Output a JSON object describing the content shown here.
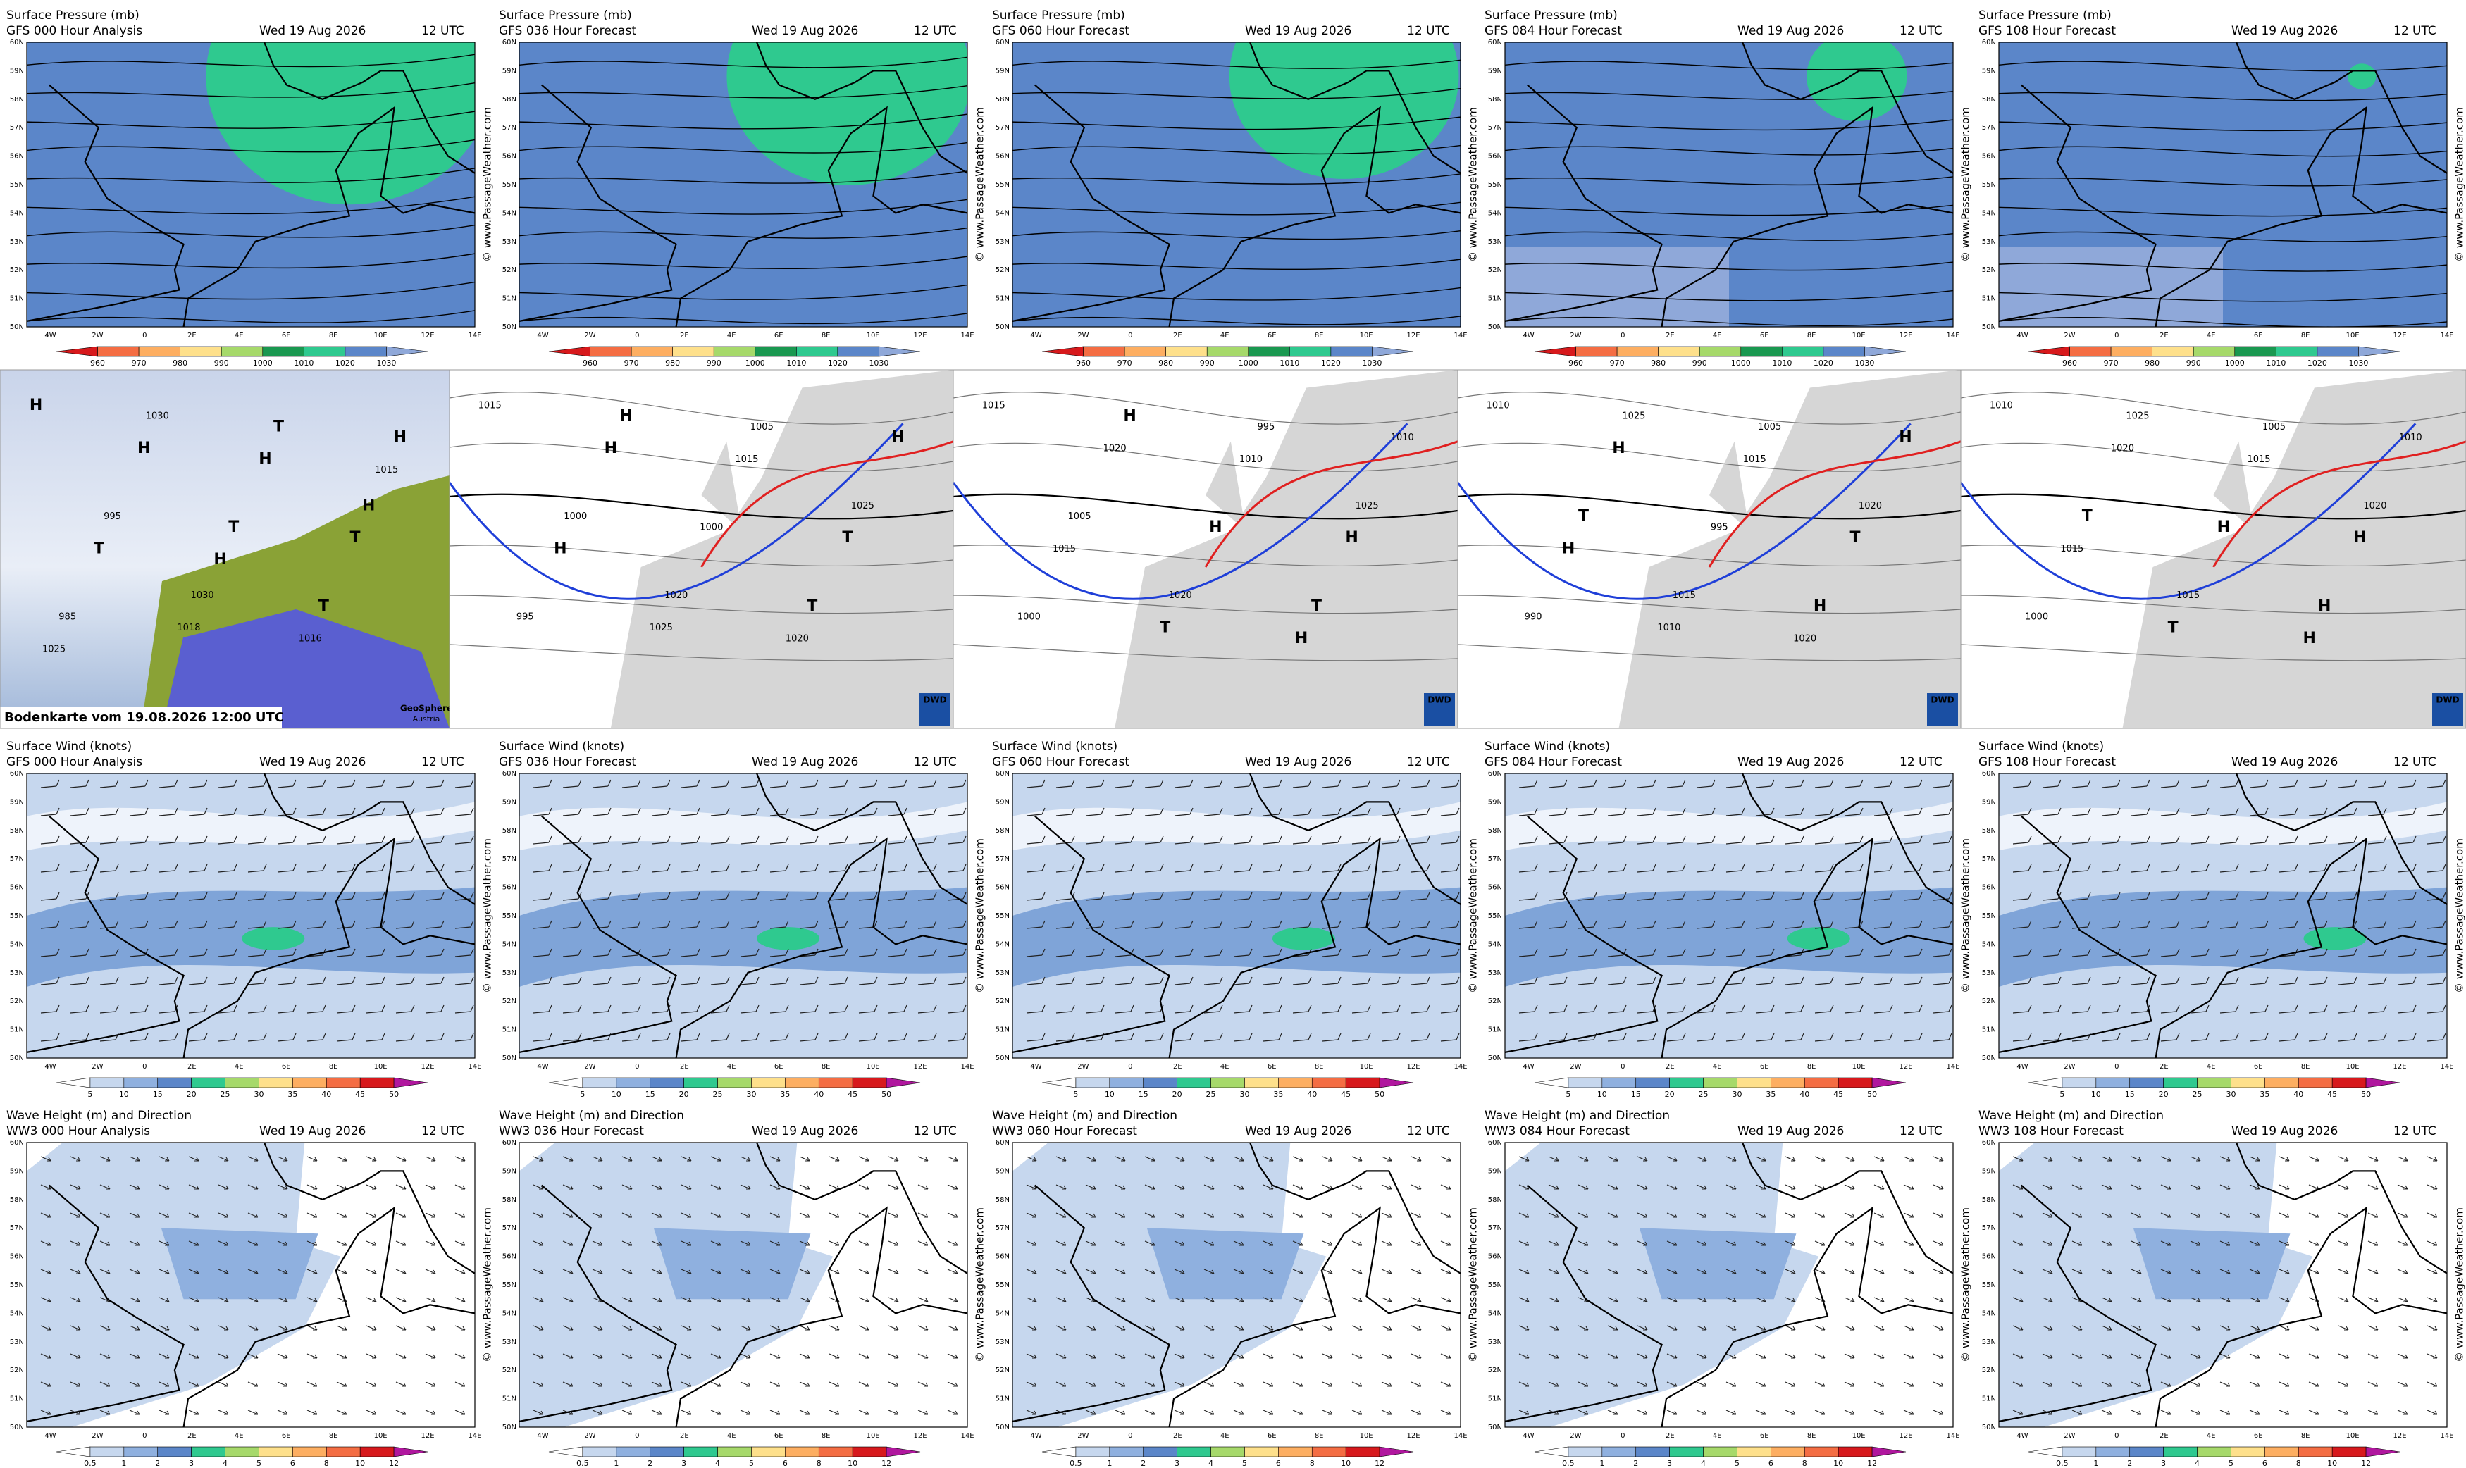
{
  "date": "Wed 19 Aug 2026",
  "time": "12 UTC",
  "watermark": "© www.PassageWeather.com",
  "lat_labels": [
    "50N",
    "51N",
    "52N",
    "53N",
    "54N",
    "55N",
    "56N",
    "57N",
    "58N",
    "59N",
    "60N"
  ],
  "lon_labels": [
    "4W",
    "2W",
    "0",
    "2E",
    "4E",
    "6E",
    "8E",
    "10E",
    "12E",
    "14E"
  ],
  "rows": [
    {
      "title": "Surface Pressure (mb)",
      "panels": [
        "GFS 000 Hour Analysis",
        "GFS 036 Hour Forecast",
        "GFS 060 Hour Forecast",
        "GFS 084 Hour Forecast",
        "GFS 108 Hour Forecast"
      ],
      "colorbar": [
        "960",
        "970",
        "980",
        "990",
        "1000",
        "1010",
        "1020",
        "1030"
      ]
    },
    {
      "title": "Surface Wind (knots)",
      "panels": [
        "GFS 000 Hour Analysis",
        "GFS 036 Hour Forecast",
        "GFS 060 Hour Forecast",
        "GFS 084 Hour Forecast",
        "GFS 108 Hour Forecast"
      ],
      "colorbar": [
        "5",
        "10",
        "15",
        "20",
        "25",
        "30",
        "35",
        "40",
        "45",
        "50"
      ]
    },
    {
      "title": "Wave Height (m) and Direction",
      "panels": [
        "WW3 000 Hour Analysis",
        "WW3 036 Hour Forecast",
        "WW3 060 Hour Forecast",
        "WW3 084 Hour Forecast",
        "WW3 108 Hour Forecast"
      ],
      "colorbar": [
        "0.5",
        "1",
        "2",
        "3",
        "4",
        "5",
        "6",
        "8",
        "10",
        "12"
      ]
    }
  ],
  "analysis": {
    "caption": "Bodenkarte vom 19.08.2026 12:00 UTC",
    "logo": [
      "GeoSphere",
      "Austria"
    ],
    "dwd": "DWD",
    "charts": [
      [
        "H",
        "1030",
        "H",
        "1030",
        "T",
        "995",
        "T",
        "985",
        "T",
        "H",
        "1018",
        "T",
        "H",
        "1016",
        "T",
        "H",
        "1025",
        "H",
        "1015"
      ],
      [
        "1015",
        "1020",
        "1025",
        "H",
        "T",
        "1000",
        "1005",
        "995",
        "1000",
        "H",
        "1025",
        "T",
        "H",
        "1020",
        "H",
        "1015"
      ],
      [
        "1015",
        "1020",
        "1025",
        "H",
        "T",
        "1005",
        "995",
        "1000",
        "H",
        "1010",
        "T",
        "H",
        "1020",
        "H",
        "1015",
        "1010"
      ],
      [
        "1010",
        "1015",
        "1020",
        "1025",
        "H",
        "T",
        "1005",
        "990",
        "995",
        "H",
        "1010",
        "T",
        "H",
        "1020",
        "H",
        "1015"
      ],
      [
        "1010",
        "1015",
        "1020",
        "1025",
        "H",
        "T",
        "1005",
        "1000",
        "H",
        "1010",
        "T",
        "H",
        "1020",
        "H",
        "1015",
        "1015"
      ]
    ]
  }
}
